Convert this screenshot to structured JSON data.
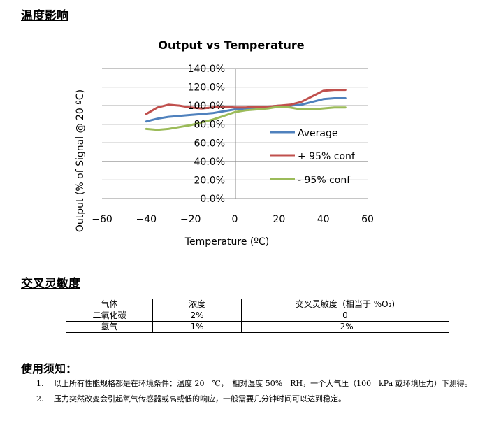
{
  "sections": {
    "temp_title": "温度影响",
    "cross_title": "交叉灵敏度",
    "notes_title": "使用须知："
  },
  "chart_data": {
    "type": "line",
    "title": "Output vs Temperature",
    "xlabel": "Temperature (ºC)",
    "ylabel": "Output (% of Signal @ 20 ºC)",
    "xlim": [
      -60,
      60
    ],
    "ylim": [
      0,
      140
    ],
    "x_ticks": [
      "−60",
      "−40",
      "−20",
      "0",
      "20",
      "40",
      "60"
    ],
    "y_ticks": [
      "0.0%",
      "20.0%",
      "40.0%",
      "60.0%",
      "80.0%",
      "100.0%",
      "120.0%",
      "140.0%"
    ],
    "grid": true,
    "legend_position": "right",
    "x": [
      -40,
      -35,
      -30,
      -25,
      -20,
      -15,
      -10,
      -5,
      0,
      5,
      10,
      15,
      20,
      25,
      30,
      35,
      40,
      45,
      50
    ],
    "series": [
      {
        "name": "Average",
        "color": "#4f81bd",
        "values": [
          83,
          86,
          88,
          89,
          90,
          91,
          92,
          94,
          96,
          97,
          98,
          99,
          100,
          100,
          101,
          104,
          107,
          108,
          108
        ]
      },
      {
        "name": "+ 95% conf",
        "color": "#c0504d",
        "values": [
          91,
          98,
          101,
          100,
          98,
          97,
          98,
          99,
          98,
          98,
          99,
          99,
          100,
          101,
          104,
          110,
          116,
          117,
          117
        ]
      },
      {
        "name": "- 95% conf",
        "color": "#9bbb59",
        "values": [
          75,
          74,
          75,
          77,
          79,
          82,
          85,
          89,
          93,
          95,
          96,
          97,
          99,
          98,
          96,
          96,
          97,
          98,
          98
        ]
      }
    ]
  },
  "cross_table": {
    "headers": [
      "气体",
      "浓度",
      "交叉灵敏度（相当于 %O₂)"
    ],
    "rows": [
      [
        "二氧化碳",
        "2%",
        "0"
      ],
      [
        "氢气",
        "1%",
        "-2%"
      ]
    ]
  },
  "notes": [
    {
      "num": "1.",
      "text": "以上所有性能规格都是在环境条件：温度 20　℃，　相对湿度 50%　RH，一个大气压（100　kPa 或环境压力）下测得。"
    },
    {
      "num": "2.",
      "text": "压力突然改变会引起氧气传感器或高或低的响应，一般需要几分钟时间可以达到稳定。"
    }
  ]
}
